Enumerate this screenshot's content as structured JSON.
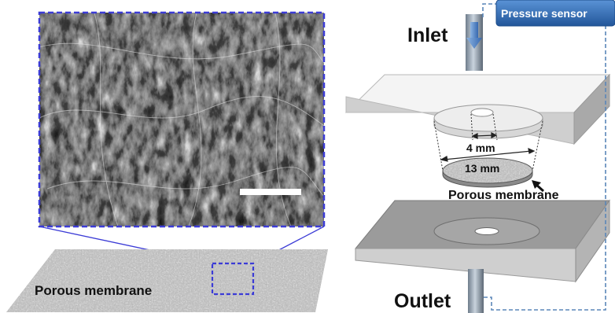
{
  "left_panel": {
    "sem_scale_bar": true,
    "membrane_label": "Porous membrane"
  },
  "right_panel": {
    "inlet_label": "Inlet",
    "outlet_label": "Outlet",
    "sensor_label": "Pressure sensor",
    "dim_inner_label": "4 mm",
    "dim_outer_label": "13 mm",
    "membrane_label": "Porous membrane"
  },
  "colors": {
    "dashed_box": "#3b3bd6",
    "sensor_box": "#2f6db5",
    "sensor_dashed": "#5a86b8",
    "inlet_arrow": "#4a7fc4",
    "plate_top": "#f4f4f4",
    "plate_side": "#c7c7c7"
  }
}
